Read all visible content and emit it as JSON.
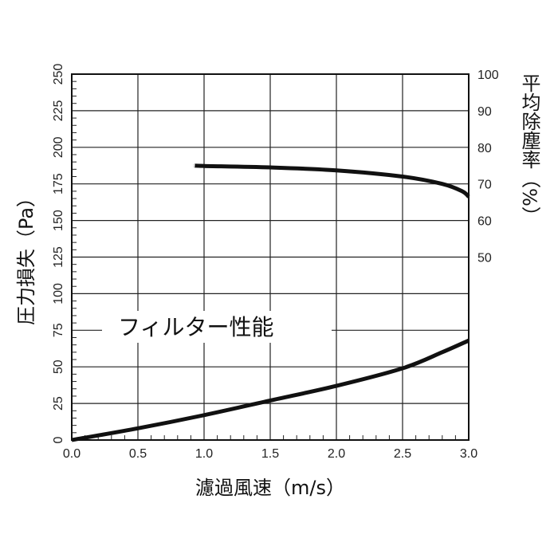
{
  "chart_data": {
    "type": "line",
    "title": "",
    "annotation": "フィルター性能",
    "xlabel": "濾過風速（m/s）",
    "ylabel_left": "圧力損失（Pa）",
    "ylabel_right": "平均除塵率（%）",
    "xlim": [
      0,
      3.0
    ],
    "ylim_left": [
      0,
      250
    ],
    "ylim_right": [
      0,
      100
    ],
    "x_ticks": [
      "0.0",
      "0.5",
      "1.0",
      "1.5",
      "2.0",
      "2.5",
      "3.0"
    ],
    "x_tick_values": [
      0,
      0.5,
      1.0,
      1.5,
      2.0,
      2.5,
      3.0
    ],
    "y_left_ticks": [
      0,
      25,
      50,
      75,
      100,
      125,
      150,
      175,
      200,
      225,
      250
    ],
    "y_right_ticks": [
      50,
      60,
      70,
      80,
      90,
      100
    ],
    "grid": true,
    "series": [
      {
        "axis": "right",
        "x": [
          0.93,
          1.0,
          1.5,
          2.0,
          2.5,
          2.8,
          2.95,
          3.0
        ],
        "y": [
          75.0,
          74.9,
          74.5,
          73.7,
          72.0,
          70.0,
          68.0,
          66.5
        ]
      },
      {
        "axis": "left",
        "x": [
          0.0,
          0.5,
          1.0,
          1.5,
          2.0,
          2.5,
          2.8,
          3.0
        ],
        "y": [
          0,
          8,
          17,
          27,
          37,
          49,
          60,
          68
        ]
      }
    ]
  }
}
